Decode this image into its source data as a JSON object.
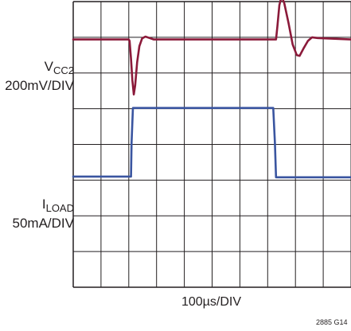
{
  "chart_data": {
    "type": "line",
    "title": "",
    "grid": true,
    "grid_divisions": {
      "x": 10,
      "y": 8
    },
    "x_axis": {
      "label": "100µs/DIV",
      "units": "div",
      "range": [
        0,
        10
      ]
    },
    "y_axis": {
      "units": "div",
      "range": [
        0,
        8
      ],
      "zero_top": true
    },
    "channels": [
      {
        "id": "vcc2",
        "name": "V",
        "subscript": "CC2",
        "scale": "200mV/DIV",
        "color": "#8b1a3a"
      },
      {
        "id": "iload",
        "name": "I",
        "subscript": "LOAD",
        "scale": "50mA/DIV",
        "color": "#3a55a0"
      }
    ],
    "series": [
      {
        "name": "VCC2",
        "color": "#8b1a3a",
        "points": [
          [
            0,
            1.06
          ],
          [
            2.0,
            1.06
          ],
          [
            2.03,
            1.1
          ],
          [
            2.08,
            1.6
          ],
          [
            2.13,
            2.2
          ],
          [
            2.18,
            2.6
          ],
          [
            2.23,
            2.35
          ],
          [
            2.3,
            1.7
          ],
          [
            2.38,
            1.25
          ],
          [
            2.48,
            1.03
          ],
          [
            2.6,
            0.98
          ],
          [
            2.75,
            1.02
          ],
          [
            2.9,
            1.06
          ],
          [
            6.0,
            1.06
          ],
          [
            7.2,
            1.06
          ],
          [
            7.3,
            1.06
          ],
          [
            7.35,
            0.7
          ],
          [
            7.42,
            0.1
          ],
          [
            7.5,
            -0.15
          ],
          [
            7.6,
            0.05
          ],
          [
            7.75,
            0.6
          ],
          [
            7.9,
            1.2
          ],
          [
            8.05,
            1.5
          ],
          [
            8.15,
            1.52
          ],
          [
            8.3,
            1.3
          ],
          [
            8.45,
            1.1
          ],
          [
            8.6,
            1.0
          ],
          [
            8.8,
            1.02
          ],
          [
            10,
            1.06
          ]
        ]
      },
      {
        "name": "ILOAD",
        "color": "#3a55a0",
        "points": [
          [
            0,
            4.9
          ],
          [
            2.08,
            4.9
          ],
          [
            2.1,
            3.95
          ],
          [
            2.15,
            2.98
          ],
          [
            7.2,
            2.98
          ],
          [
            7.26,
            3.95
          ],
          [
            7.3,
            4.92
          ],
          [
            10,
            4.92
          ]
        ]
      }
    ]
  },
  "figure_code": "2885 G14"
}
